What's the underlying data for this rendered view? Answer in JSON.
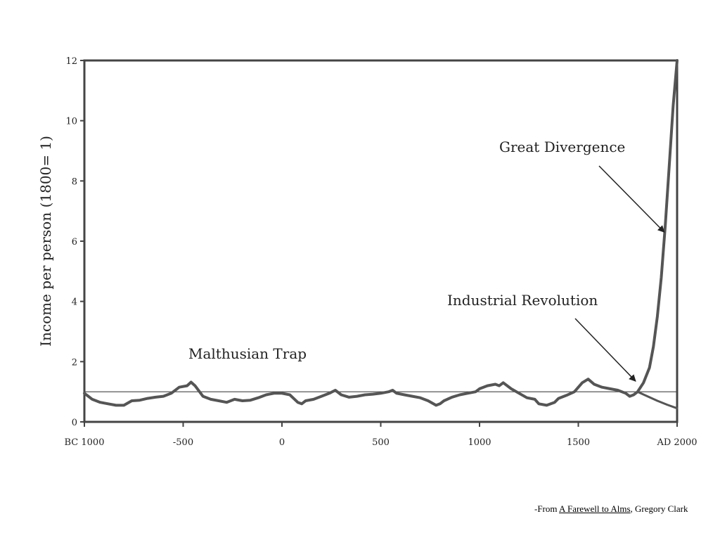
{
  "chart_data": {
    "type": "line",
    "title": "",
    "xlabel": "",
    "ylabel": "Income per person (1800= 1)",
    "xlim": [
      -1000,
      2000
    ],
    "ylim": [
      0,
      12
    ],
    "x_ticks": [
      {
        "value": -1000,
        "label": "BC 1000"
      },
      {
        "value": -500,
        "label": "-500"
      },
      {
        "value": 0,
        "label": "0"
      },
      {
        "value": 500,
        "label": "500"
      },
      {
        "value": 1000,
        "label": "1000"
      },
      {
        "value": 1500,
        "label": "1500"
      },
      {
        "value": 2000,
        "label": "AD 2000"
      }
    ],
    "y_ticks": [
      0,
      2,
      4,
      6,
      8,
      10,
      12
    ],
    "grid": false,
    "reference_line": {
      "y": 1
    },
    "series": [
      {
        "x": [
          -1000,
          -960,
          -920,
          -880,
          -840,
          -800,
          -760,
          -720,
          -680,
          -640,
          -600,
          -560,
          -520,
          -480,
          -460,
          -440,
          -400,
          -360,
          -320,
          -280,
          -240,
          -200,
          -160,
          -120,
          -80,
          -40,
          0,
          40,
          80,
          100,
          120,
          160,
          200,
          240,
          270,
          300,
          340,
          380,
          420,
          460,
          500,
          540,
          560,
          580,
          620,
          660,
          700,
          740,
          780,
          800,
          820,
          860,
          900,
          940,
          980,
          1000,
          1040,
          1080,
          1100,
          1120,
          1160,
          1200,
          1240,
          1280,
          1300,
          1340,
          1380,
          1400,
          1440,
          1480,
          1520,
          1550,
          1580,
          1620,
          1660,
          1700,
          1740,
          1760,
          1780,
          1800,
          1830,
          1860,
          1880,
          1900,
          1920,
          1940,
          1960,
          1980,
          2000
        ],
        "values": [
          0.95,
          0.75,
          0.65,
          0.6,
          0.55,
          0.55,
          0.7,
          0.72,
          0.78,
          0.82,
          0.85,
          0.95,
          1.15,
          1.2,
          1.32,
          1.2,
          0.85,
          0.75,
          0.7,
          0.65,
          0.75,
          0.7,
          0.72,
          0.8,
          0.9,
          0.95,
          0.95,
          0.9,
          0.65,
          0.6,
          0.7,
          0.75,
          0.85,
          0.95,
          1.05,
          0.9,
          0.82,
          0.85,
          0.9,
          0.92,
          0.95,
          1.0,
          1.05,
          0.95,
          0.9,
          0.85,
          0.8,
          0.7,
          0.55,
          0.6,
          0.7,
          0.82,
          0.9,
          0.95,
          1.0,
          1.1,
          1.2,
          1.25,
          1.2,
          1.3,
          1.1,
          0.95,
          0.8,
          0.75,
          0.6,
          0.55,
          0.65,
          0.78,
          0.88,
          1.0,
          1.3,
          1.42,
          1.25,
          1.15,
          1.1,
          1.05,
          0.95,
          0.85,
          0.9,
          1.0,
          1.3,
          1.8,
          2.5,
          3.5,
          4.8,
          6.5,
          8.5,
          10.5,
          12.5
        ]
      },
      {
        "x": [
          1800,
          1850,
          1900,
          1950,
          2000
        ],
        "values": [
          1.0,
          0.85,
          0.7,
          0.57,
          0.45
        ]
      }
    ],
    "annotations": [
      {
        "text": "Malthusian Trap"
      },
      {
        "text": "Industrial Revolution",
        "arrow_to": {
          "x": 1790,
          "y": 1.35
        }
      },
      {
        "text": "Great Divergence",
        "arrow_to": {
          "x": 1935,
          "y": 6.3
        }
      }
    ]
  },
  "caption": {
    "prefix": "-From ",
    "book": "A Farewell to Alms",
    "suffix": ", Gregory Clark"
  }
}
